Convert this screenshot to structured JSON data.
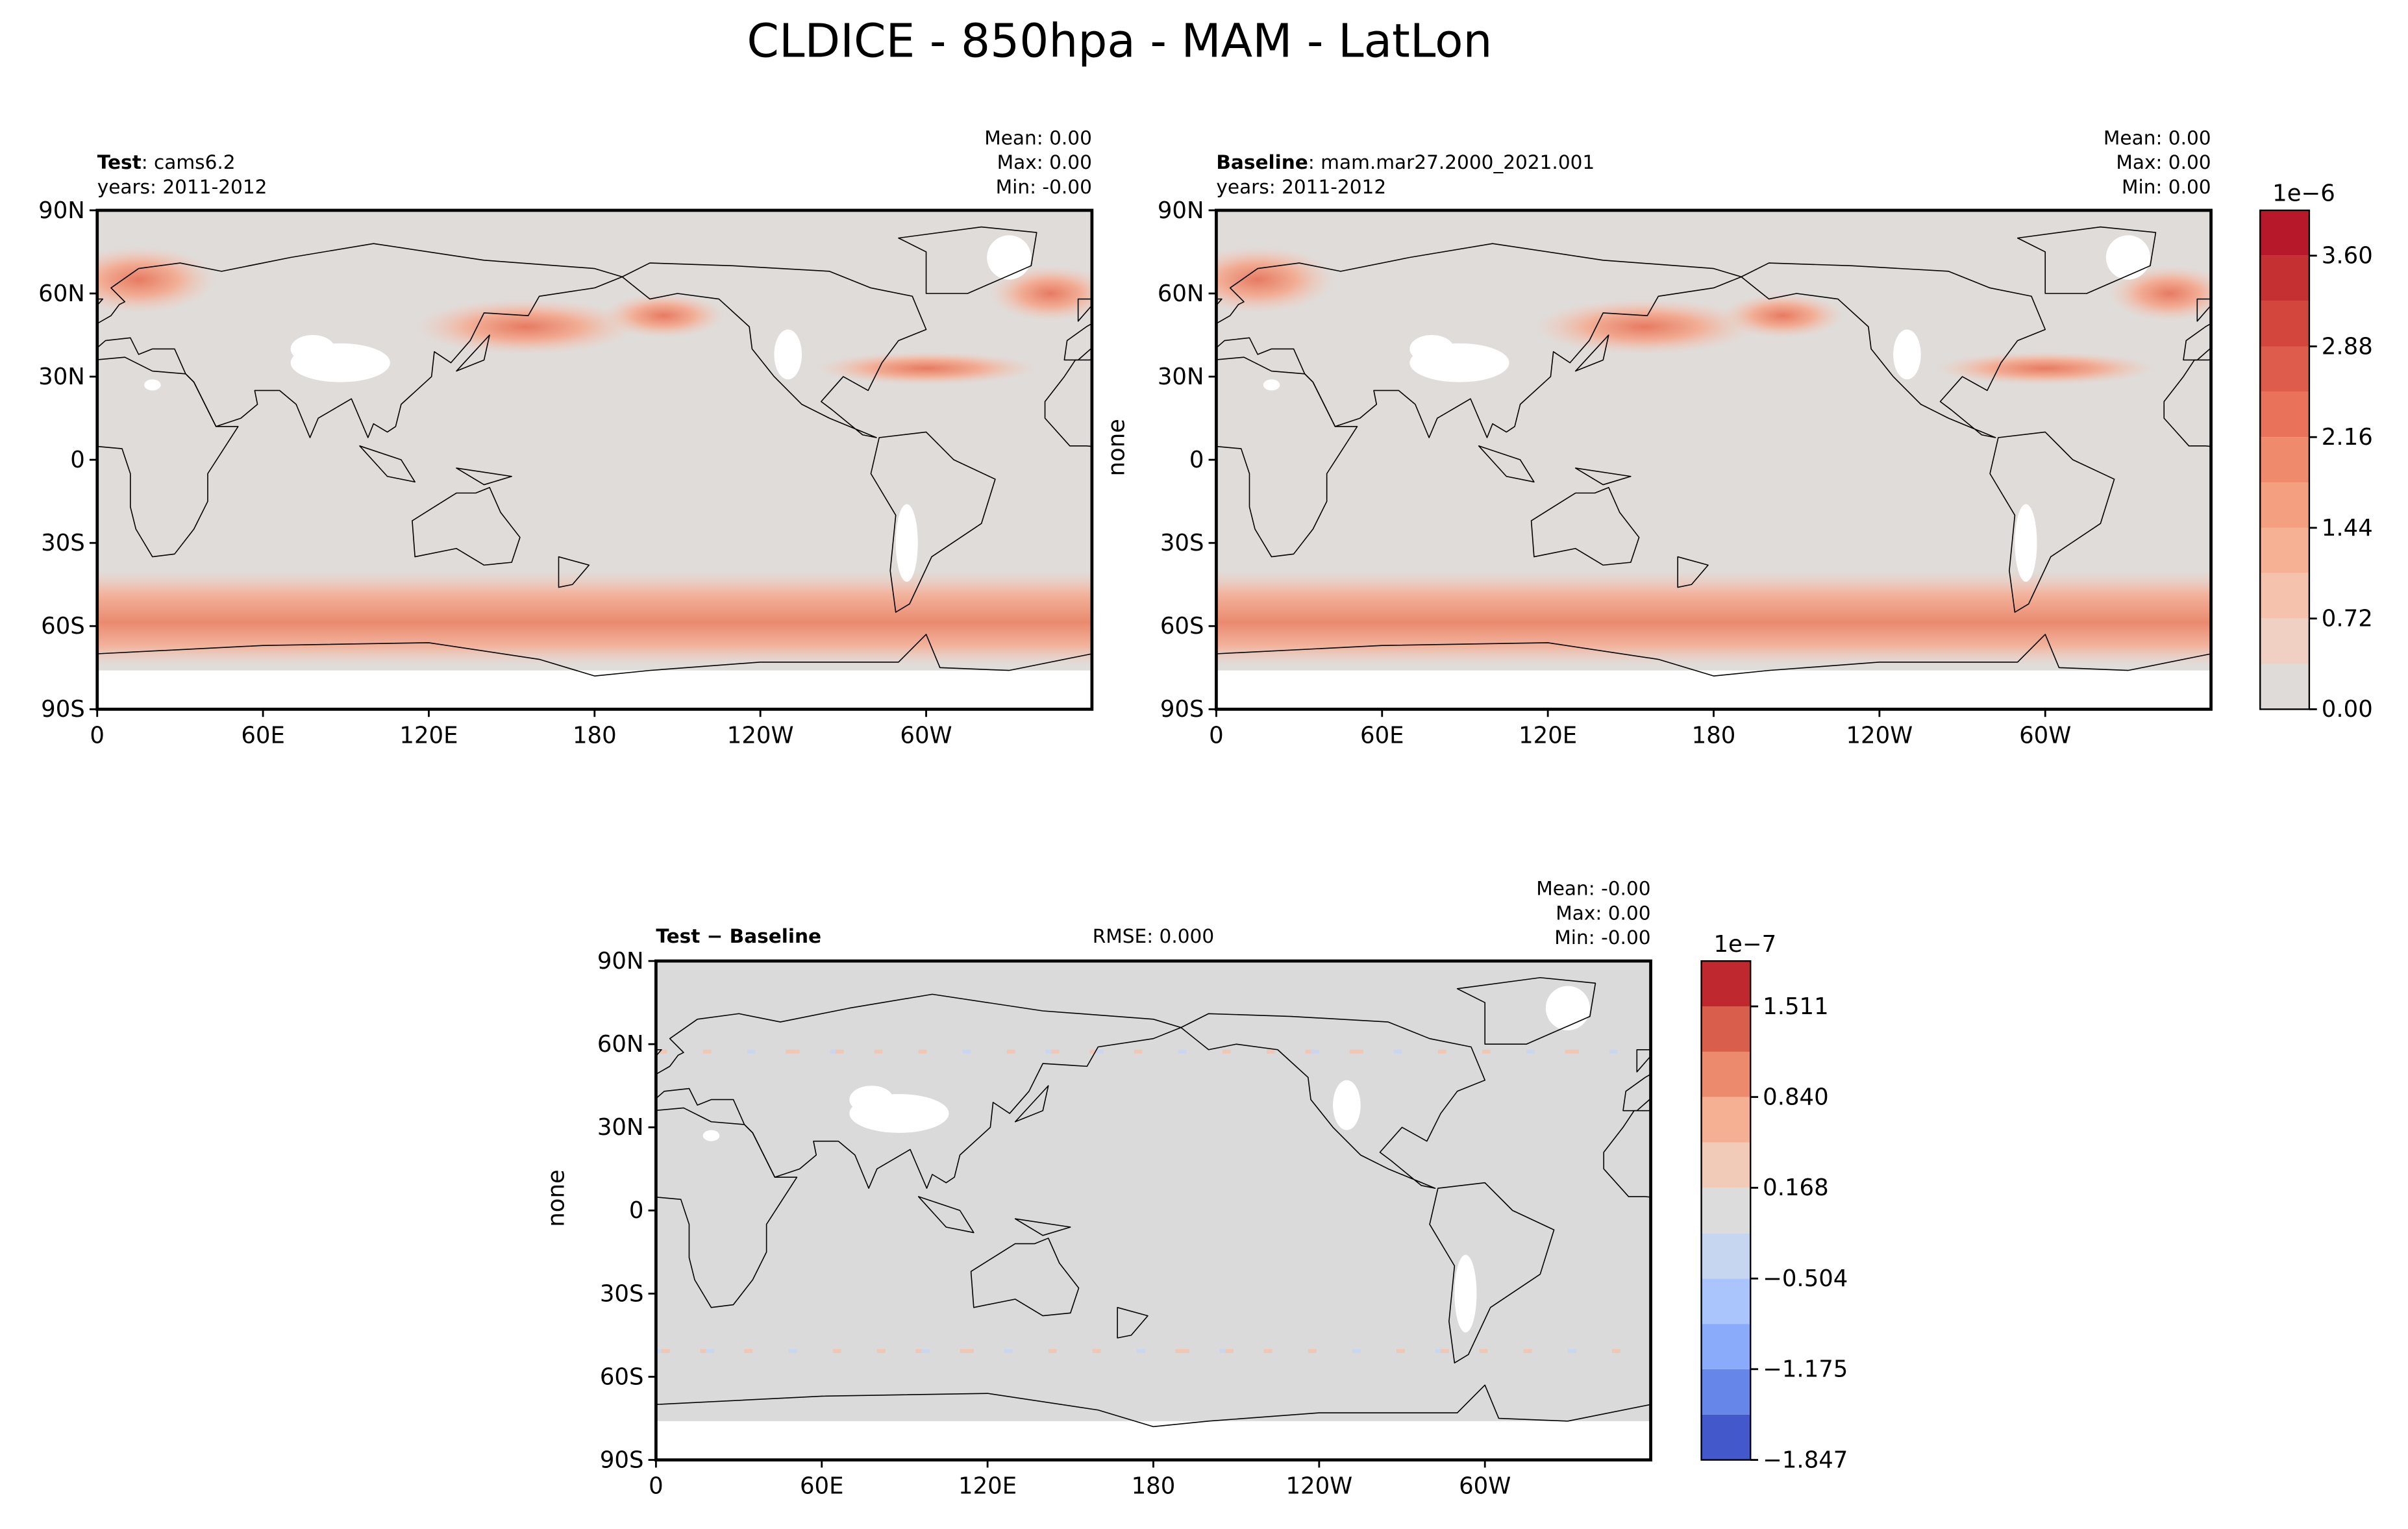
{
  "title": "CLDICE - 850hpa - MAM - LatLon",
  "chart_data": [
    {
      "type": "map",
      "title_bold": "Test",
      "title_case": ": cams6.2",
      "years": "years: 2011-2012",
      "stats": [
        "Mean:  0.00",
        "Max:  0.00",
        "Min: -0.00"
      ],
      "xlim": [
        0,
        360
      ],
      "ylim": [
        -90,
        90
      ],
      "xticks": [
        0,
        {
          "value": 60,
          "label": "60E"
        },
        {
          "value": 120,
          "label": "120E"
        },
        180,
        {
          "value": 240,
          "label": "120W"
        },
        {
          "value": 300,
          "label": "60W"
        }
      ],
      "yticks": [
        {
          "value": -90,
          "label": "90S"
        },
        {
          "value": -60,
          "label": "60S"
        },
        {
          "value": -30,
          "label": "30S"
        },
        0,
        {
          "value": 30,
          "label": "30N"
        },
        {
          "value": 60,
          "label": "60N"
        },
        {
          "value": 90,
          "label": "90N"
        }
      ]
    },
    {
      "type": "map",
      "title_bold": "Baseline",
      "title_case": ": mam.mar27.2000_2021.001",
      "years": "years: 2011-2012",
      "stats": [
        "Mean:  0.00",
        "Max:  0.00",
        "Min:  0.00"
      ],
      "ylabel": "none",
      "xlim": [
        0,
        360
      ],
      "ylim": [
        -90,
        90
      ],
      "xticks": [
        0,
        {
          "value": 60,
          "label": "60E"
        },
        {
          "value": 120,
          "label": "120E"
        },
        180,
        {
          "value": 240,
          "label": "120W"
        },
        {
          "value": 300,
          "label": "60W"
        }
      ],
      "yticks": [
        {
          "value": -90,
          "label": "90S"
        },
        {
          "value": -60,
          "label": "60S"
        },
        {
          "value": -30,
          "label": "30S"
        },
        0,
        {
          "value": 30,
          "label": "30N"
        },
        {
          "value": 60,
          "label": "60N"
        },
        {
          "value": 90,
          "label": "90N"
        }
      ],
      "colorbar": {
        "offset": "1e−6",
        "levels": [
          0,
          0.36,
          0.72,
          1.08,
          1.44,
          1.8,
          2.16,
          2.52,
          2.88,
          3.24,
          3.6,
          3.96
        ],
        "colors": [
          "#dfdbd8",
          "#efd0c3",
          "#f4c2ad",
          "#f6b194",
          "#f49f80",
          "#ef8a6c",
          "#e8735a",
          "#de5c4b",
          "#d2463d",
          "#c53032",
          "#b7182a"
        ],
        "ticks": [
          {
            "value": 0,
            "label": "0.00"
          },
          0.72,
          1.44,
          2.16,
          2.88,
          {
            "value": 3.6,
            "label": "3.60"
          }
        ]
      }
    },
    {
      "type": "map",
      "title_bold": "Test − Baseline",
      "rmse": "RMSE: 0.000",
      "stats": [
        "Mean: -0.00",
        "Max:  0.00",
        "Min: -0.00"
      ],
      "ylabel": "none",
      "xlim": [
        0,
        360
      ],
      "ylim": [
        -90,
        90
      ],
      "xticks": [
        0,
        {
          "value": 60,
          "label": "60E"
        },
        {
          "value": 120,
          "label": "120E"
        },
        180,
        {
          "value": 240,
          "label": "120W"
        },
        {
          "value": 300,
          "label": "60W"
        }
      ],
      "yticks": [
        {
          "value": -90,
          "label": "90S"
        },
        {
          "value": -60,
          "label": "60S"
        },
        {
          "value": -30,
          "label": "30S"
        },
        0,
        {
          "value": 30,
          "label": "30N"
        },
        {
          "value": 60,
          "label": "60N"
        },
        {
          "value": 90,
          "label": "90N"
        }
      ],
      "colorbar": {
        "offset": "1e−7",
        "levels": [
          -1.847,
          -1.511,
          -1.175,
          -0.84,
          -0.504,
          -0.168,
          0.168,
          0.504,
          0.84,
          1.175,
          1.511,
          1.847
        ],
        "colors": [
          "#4358cb",
          "#6686e9",
          "#89abf9",
          "#a9c5fc",
          "#c6d6f1",
          "#dcdcdc",
          "#f1cbb8",
          "#f5af92",
          "#ec8a6d",
          "#da5e4c",
          "#c0282f"
        ],
        "ticks": [
          {
            "value": -1.847,
            "label": "−1.847"
          },
          {
            "value": -1.175,
            "label": "−1.175"
          },
          {
            "value": -0.504,
            "label": "−0.504"
          },
          0.168,
          {
            "value": 0.84,
            "label": "0.840"
          },
          1.511
        ]
      }
    }
  ]
}
